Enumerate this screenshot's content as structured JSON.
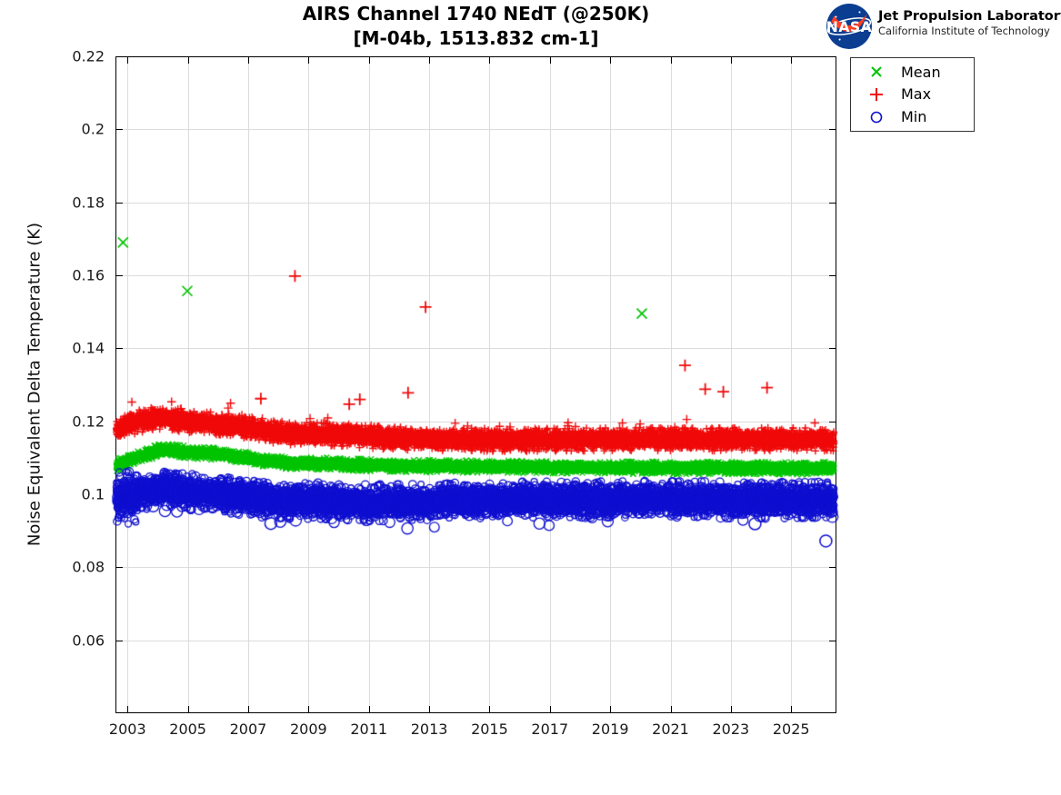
{
  "header": {
    "logo": {
      "org": "NASA",
      "name": "Jet Propulsion Laboratory",
      "affiliation": "California Institute of Technology",
      "insignia_blue": "#0b3d91",
      "swoosh_red": "#fc3d21"
    }
  },
  "chart_data": {
    "type": "scatter",
    "title": "AIRS Channel 1740 NEdT (@250K)",
    "subtitle": "[M-04b, 1513.832 cm-1]",
    "xlabel": "",
    "ylabel": "Noise Equivalent Delta Temperature (K)",
    "xlim": [
      2002.6,
      2026.5
    ],
    "ylim": [
      0.04,
      0.22
    ],
    "xticks": [
      2003,
      2005,
      2007,
      2009,
      2011,
      2013,
      2015,
      2017,
      2019,
      2021,
      2023,
      2025
    ],
    "xtick_labels": [
      "2003",
      "2005",
      "2007",
      "2009",
      "2011",
      "2013",
      "2015",
      "2017",
      "2019",
      "2021",
      "2023",
      "2025"
    ],
    "yticks": [
      0.06,
      0.08,
      0.1,
      0.12,
      0.14,
      0.16,
      0.18,
      0.2,
      0.22
    ],
    "ytick_labels": [
      "0.06",
      "0.08",
      "0.1",
      "0.12",
      "0.14",
      "0.16",
      "0.18",
      "0.2",
      "0.22"
    ],
    "grid": true,
    "grid_color": "#dcdcdc",
    "axis_color": "#000000",
    "tick_label_color": "#1a1a1a",
    "data_start_year": 2002.63,
    "data_end_year": 2026.42,
    "legend": {
      "position": "outside-top-right",
      "entries": [
        {
          "label": "Mean",
          "marker": "x",
          "color": "#00c400"
        },
        {
          "label": "Max",
          "marker": "+",
          "color": "#f00a0a"
        },
        {
          "label": "Min",
          "marker": "o",
          "color": "#0f0fd0"
        }
      ]
    },
    "series": [
      {
        "name": "Mean",
        "marker": "x",
        "color": "#00c400",
        "points_per_year": 330,
        "jitter": 0.00065,
        "trend": [
          [
            2002.65,
            0.1078
          ],
          [
            2003.0,
            0.1092
          ],
          [
            2003.6,
            0.1108
          ],
          [
            2004.1,
            0.1122
          ],
          [
            2004.5,
            0.112
          ],
          [
            2005.0,
            0.1116
          ],
          [
            2005.5,
            0.1112
          ],
          [
            2006.0,
            0.111
          ],
          [
            2006.5,
            0.1106
          ],
          [
            2007.0,
            0.1098
          ],
          [
            2007.5,
            0.1092
          ],
          [
            2008.0,
            0.1088
          ],
          [
            2008.7,
            0.1084
          ],
          [
            2009.5,
            0.1085
          ],
          [
            2010.0,
            0.1084
          ],
          [
            2010.5,
            0.1081
          ],
          [
            2011.0,
            0.108
          ],
          [
            2012.0,
            0.1078
          ],
          [
            2013.0,
            0.1077
          ],
          [
            2014.0,
            0.1076
          ],
          [
            2015.0,
            0.1076
          ],
          [
            2016.0,
            0.1075
          ],
          [
            2017.0,
            0.1074
          ],
          [
            2018.0,
            0.1074
          ],
          [
            2019.0,
            0.1073
          ],
          [
            2020.0,
            0.1073
          ],
          [
            2021.0,
            0.1072
          ],
          [
            2022.0,
            0.1072
          ],
          [
            2023.0,
            0.1072
          ],
          [
            2024.0,
            0.1072
          ],
          [
            2025.0,
            0.1071
          ],
          [
            2026.4,
            0.1072
          ]
        ],
        "outliers": [
          [
            2002.85,
            0.169
          ],
          [
            2004.98,
            0.1557
          ],
          [
            2020.05,
            0.1495
          ]
        ]
      },
      {
        "name": "Max",
        "marker": "+",
        "color": "#f00a0a",
        "points_per_year": 330,
        "jitter": 0.0012,
        "upper_tail": {
          "prob": 0.007,
          "min_extra": 0.001,
          "max_extra": 0.0048
        },
        "trend": [
          [
            2002.65,
            0.1178
          ],
          [
            2003.0,
            0.1192
          ],
          [
            2003.6,
            0.1204
          ],
          [
            2004.1,
            0.121
          ],
          [
            2004.5,
            0.1206
          ],
          [
            2005.0,
            0.12
          ],
          [
            2005.5,
            0.1196
          ],
          [
            2006.0,
            0.1192
          ],
          [
            2006.5,
            0.1188
          ],
          [
            2007.0,
            0.1182
          ],
          [
            2007.5,
            0.1176
          ],
          [
            2008.0,
            0.117
          ],
          [
            2008.7,
            0.1165
          ],
          [
            2009.5,
            0.1164
          ],
          [
            2010.0,
            0.1164
          ],
          [
            2010.5,
            0.116
          ],
          [
            2011.0,
            0.1157
          ],
          [
            2012.0,
            0.1153
          ],
          [
            2013.0,
            0.1151
          ],
          [
            2014.0,
            0.115
          ],
          [
            2016.0,
            0.1149
          ],
          [
            2018.0,
            0.115
          ],
          [
            2020.0,
            0.1151
          ],
          [
            2022.0,
            0.115
          ],
          [
            2024.0,
            0.1151
          ],
          [
            2026.4,
            0.115
          ]
        ],
        "outliers": [
          [
            2007.42,
            0.1262
          ],
          [
            2008.55,
            0.1598
          ],
          [
            2010.35,
            0.1247
          ],
          [
            2010.7,
            0.126
          ],
          [
            2012.3,
            0.1278
          ],
          [
            2012.88,
            0.1513
          ],
          [
            2021.48,
            0.1353
          ],
          [
            2022.15,
            0.1288
          ],
          [
            2022.75,
            0.1281
          ],
          [
            2024.2,
            0.1292
          ]
        ]
      },
      {
        "name": "Min",
        "marker": "o",
        "color": "#0f0fd0",
        "points_per_year": 330,
        "jitter": 0.0019,
        "lower_tail": {
          "prob": 0.012,
          "min_extra": 0.0012,
          "max_extra": 0.0044
        },
        "trend": [
          [
            2002.65,
            0.098
          ],
          [
            2003.0,
            0.0995
          ],
          [
            2003.6,
            0.1008
          ],
          [
            2004.1,
            0.1015
          ],
          [
            2004.5,
            0.1013
          ],
          [
            2005.0,
            0.1008
          ],
          [
            2005.5,
            0.1004
          ],
          [
            2006.0,
            0.1
          ],
          [
            2006.5,
            0.0995
          ],
          [
            2007.0,
            0.099
          ],
          [
            2007.5,
            0.0986
          ],
          [
            2008.0,
            0.0984
          ],
          [
            2008.7,
            0.0982
          ],
          [
            2009.5,
            0.0982
          ],
          [
            2010.0,
            0.098
          ],
          [
            2010.5,
            0.0978
          ],
          [
            2011.0,
            0.0976
          ],
          [
            2012.0,
            0.0977
          ],
          [
            2013.0,
            0.0979
          ],
          [
            2014.0,
            0.0982
          ],
          [
            2015.0,
            0.0984
          ],
          [
            2016.0,
            0.0985
          ],
          [
            2017.0,
            0.0985
          ],
          [
            2018.0,
            0.0985
          ],
          [
            2019.0,
            0.0986
          ],
          [
            2020.0,
            0.0986
          ],
          [
            2021.0,
            0.0986
          ],
          [
            2022.0,
            0.0985
          ],
          [
            2023.0,
            0.0984
          ],
          [
            2024.0,
            0.0983
          ],
          [
            2025.0,
            0.0984
          ],
          [
            2026.4,
            0.0984
          ]
        ],
        "outliers": [
          [
            2007.75,
            0.092
          ],
          [
            2023.8,
            0.0919
          ],
          [
            2026.15,
            0.0872
          ]
        ]
      }
    ]
  }
}
